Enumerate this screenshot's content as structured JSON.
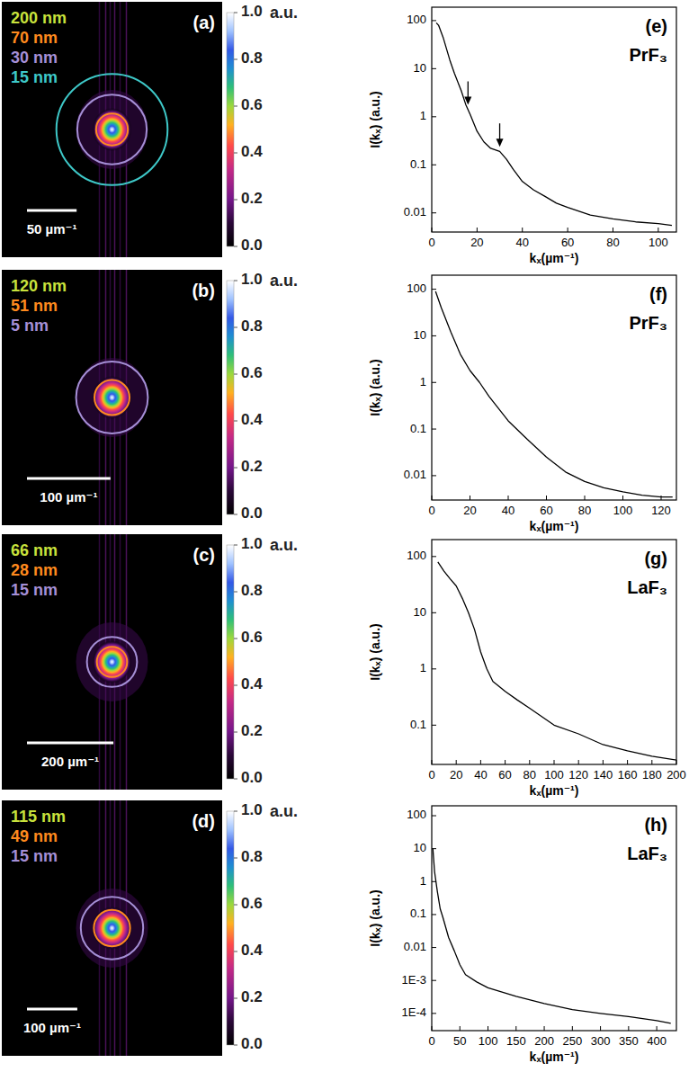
{
  "chart_data": [
    {
      "type": "image",
      "title": "(a)",
      "xlim": [
        -111,
        111
      ],
      "rings": [
        {
          "label": "200 nm",
          "color": "#c8e23c",
          "radius": null
        },
        {
          "label": "70 nm",
          "color": "#ff8a1e",
          "radius": 16
        },
        {
          "label": "30 nm",
          "color": "#a58fd6",
          "radius": 35
        },
        {
          "label": "15 nm",
          "color": "#3ec8c8",
          "radius": 56
        }
      ],
      "scale_bar": {
        "value": 50,
        "label": "50 µm⁻¹"
      },
      "colorbar": {
        "label": "a.u.",
        "range": [
          0,
          1
        ],
        "ticks": [
          {
            "value": 0,
            "label": "0.0"
          },
          {
            "value": 0.2,
            "label": "0.2"
          },
          {
            "value": 0.4,
            "label": "0.4"
          },
          {
            "value": 0.6,
            "label": "0.6"
          },
          {
            "value": 0.8,
            "label": "0.8"
          },
          {
            "value": 1,
            "label": "1.0"
          }
        ]
      }
    },
    {
      "type": "image",
      "title": "(b)",
      "xlim": [
        -132,
        132
      ],
      "rings": [
        {
          "label": "120 nm",
          "color": "#c8e23c",
          "radius": null
        },
        {
          "label": "51 nm",
          "color": "#ff8a1e",
          "radius": 21
        },
        {
          "label": "5 nm",
          "color": "#a58fd6",
          "radius": 43
        }
      ],
      "scale_bar": {
        "value": 100,
        "label": "100 µm⁻¹"
      },
      "colorbar": {
        "label": "a.u.",
        "range": [
          0,
          1
        ],
        "ticks": [
          {
            "value": 0,
            "label": "0.0"
          },
          {
            "value": 0.2,
            "label": "0.2"
          },
          {
            "value": 0.4,
            "label": "0.4"
          },
          {
            "value": 0.6,
            "label": "0.6"
          },
          {
            "value": 0.8,
            "label": "0.8"
          },
          {
            "value": 1,
            "label": "1.0"
          }
        ]
      }
    },
    {
      "type": "image",
      "title": "(c)",
      "xlim": [
        -255,
        255
      ],
      "rings": [
        {
          "label": "66 nm",
          "color": "#c8e23c",
          "radius": null
        },
        {
          "label": "28 nm",
          "color": "#ff8a1e",
          "radius": 35
        },
        {
          "label": "15 nm",
          "color": "#a58fd6",
          "radius": 58
        }
      ],
      "scale_bar": {
        "value": 200,
        "label": "200 µm⁻¹"
      },
      "colorbar": {
        "label": "a.u.",
        "range": [
          0,
          1
        ],
        "ticks": [
          {
            "value": 0,
            "label": "0.0"
          },
          {
            "value": 0.2,
            "label": "0.2"
          },
          {
            "value": 0.4,
            "label": "0.4"
          },
          {
            "value": 0.6,
            "label": "0.6"
          },
          {
            "value": 0.8,
            "label": "0.8"
          },
          {
            "value": 1,
            "label": "1.0"
          }
        ]
      }
    },
    {
      "type": "image",
      "title": "(d)",
      "xlim": [
        -219,
        219
      ],
      "rings": [
        {
          "label": "115 nm",
          "color": "#c8e23c",
          "radius": null
        },
        {
          "label": "49 nm",
          "color": "#ff8a1e",
          "radius": 36
        },
        {
          "label": "15 nm",
          "color": "#a58fd6",
          "radius": 62
        }
      ],
      "scale_bar": {
        "value": 100,
        "label": "100 µm⁻¹"
      },
      "colorbar": {
        "label": "a.u.",
        "range": [
          0,
          1
        ],
        "ticks": [
          {
            "value": 0,
            "label": "0.0"
          },
          {
            "value": 0.2,
            "label": "0.2"
          },
          {
            "value": 0.4,
            "label": "0.4"
          },
          {
            "value": 0.6,
            "label": "0.6"
          },
          {
            "value": 0.8,
            "label": "0.8"
          },
          {
            "value": 1,
            "label": "1.0"
          }
        ]
      }
    },
    {
      "type": "line",
      "title": "(e)",
      "subtitle": "PrF₃",
      "x_label": "kₓ(µm⁻¹)",
      "y_label": "I(kₓ) (a.u.)",
      "log": "y",
      "color": "#000000",
      "x": [
        2,
        3,
        5,
        8,
        10,
        13,
        15,
        17,
        20,
        23,
        26,
        30,
        33,
        36,
        40,
        45,
        50,
        55,
        60,
        70,
        80,
        90,
        100,
        106
      ],
      "values": [
        90,
        80,
        45,
        15,
        8,
        3.5,
        1.8,
        1.1,
        0.5,
        0.3,
        0.22,
        0.19,
        0.13,
        0.08,
        0.045,
        0.03,
        0.022,
        0.016,
        0.013,
        0.009,
        0.0075,
        0.0065,
        0.006,
        0.0055
      ],
      "xlim": [
        0,
        108
      ],
      "xticks": [
        0,
        20,
        40,
        60,
        80,
        100
      ],
      "ylim": [
        0.004,
        190
      ],
      "yticks": [
        0.01,
        0.1,
        1,
        10,
        100
      ],
      "arrows": [
        {
          "x": 16,
          "y": 1.5
        },
        {
          "x": 30,
          "y": 0.2
        }
      ]
    },
    {
      "type": "line",
      "title": "(f)",
      "subtitle": "PrF₃",
      "x_label": "kₓ(µm⁻¹)",
      "y_label": "I(kₓ) (a.u.)",
      "log": "y",
      "color": "#000000",
      "x": [
        2,
        5,
        10,
        15,
        20,
        25,
        30,
        40,
        50,
        60,
        70,
        80,
        90,
        100,
        110,
        120,
        126
      ],
      "values": [
        90,
        40,
        12,
        4,
        1.8,
        1,
        0.5,
        0.15,
        0.06,
        0.025,
        0.012,
        0.0075,
        0.0055,
        0.0045,
        0.0038,
        0.0035,
        0.0035
      ],
      "xlim": [
        0,
        128
      ],
      "xticks": [
        0,
        20,
        40,
        60,
        80,
        100,
        120
      ],
      "ylim": [
        0.003,
        200
      ],
      "yticks": [
        0.01,
        0.1,
        1,
        10,
        100
      ]
    },
    {
      "type": "line",
      "title": "(g)",
      "subtitle": "LaF₃",
      "x_label": "kₓ(µm⁻¹)",
      "y_label": "I(kₓ) (a.u.)",
      "log": "y",
      "color": "#000000",
      "x": [
        5,
        10,
        15,
        20,
        25,
        30,
        35,
        40,
        45,
        50,
        60,
        70,
        80,
        100,
        120,
        140,
        160,
        180,
        200
      ],
      "values": [
        80,
        55,
        40,
        30,
        18,
        10,
        5,
        2,
        1,
        0.6,
        0.4,
        0.28,
        0.2,
        0.1,
        0.07,
        0.045,
        0.035,
        0.028,
        0.024
      ],
      "xlim": [
        0,
        200
      ],
      "xticks": [
        0,
        20,
        40,
        60,
        80,
        100,
        120,
        140,
        160,
        180,
        200
      ],
      "ylim": [
        0.02,
        200
      ],
      "yticks": [
        0.1,
        1,
        10,
        100
      ]
    },
    {
      "type": "line",
      "title": "(h)",
      "subtitle": "LaF₃",
      "x_label": "kₓ(µm⁻¹)",
      "y_label": "I(kₓ) (a.u.)",
      "log": "y",
      "color": "#000000",
      "x": [
        2,
        5,
        10,
        15,
        20,
        30,
        40,
        50,
        60,
        80,
        100,
        150,
        200,
        250,
        300,
        350,
        400,
        425
      ],
      "values": [
        10,
        2,
        0.5,
        0.15,
        0.08,
        0.02,
        0.008,
        0.003,
        0.0015,
        0.0009,
        0.0006,
        0.00033,
        0.0002,
        0.00013,
        0.0001,
        8e-05,
        6e-05,
        5e-05
      ],
      "xlim": [
        0,
        435
      ],
      "xticks": [
        0,
        50,
        100,
        150,
        200,
        250,
        300,
        350,
        400
      ],
      "ylim": [
        3e-05,
        200
      ],
      "yticks": [
        {
          "value": 0.0001,
          "label": "1E-4"
        },
        {
          "value": 0.001,
          "label": "1E-3"
        },
        0.01,
        0.1,
        1,
        10,
        100
      ]
    }
  ]
}
